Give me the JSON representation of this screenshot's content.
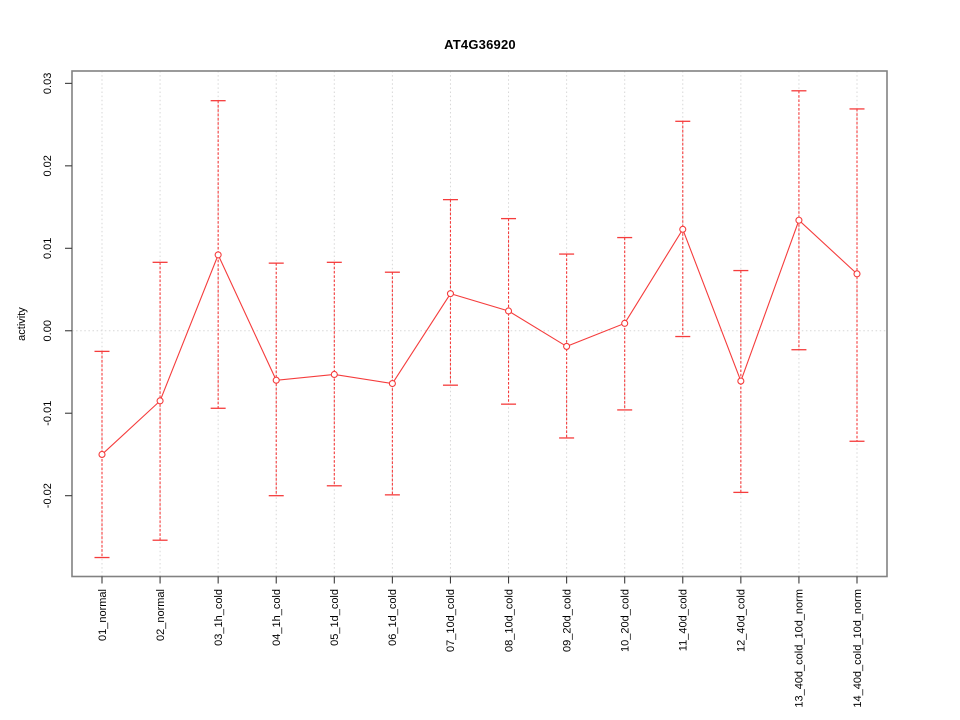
{
  "page": {
    "background": "#ffffff"
  },
  "chart_data": {
    "type": "line",
    "title": "AT4G36920",
    "ylabel": "activity",
    "xlabel": "",
    "legend": "none",
    "marker": "open-circle",
    "error_bars": true,
    "categories": [
      "01_normal",
      "02_normal",
      "03_1h_cold",
      "04_1h_cold",
      "05_1d_cold",
      "06_1d_cold",
      "07_10d_cold",
      "08_10d_cold",
      "09_20d_cold",
      "10_20d_cold",
      "11_40d_cold",
      "12_40d_cold",
      "13_40d_cold_10d_norm",
      "14_40d_cold_10d_norm"
    ],
    "series": [
      {
        "name": "activity",
        "color": "#f53c3c",
        "values": [
          -0.015,
          -0.0085,
          0.0092,
          -0.006,
          -0.0053,
          -0.0064,
          0.0045,
          0.0024,
          -0.0019,
          0.0009,
          0.0123,
          -0.0061,
          0.0134,
          0.0069
        ],
        "upper": [
          -0.0025,
          0.0083,
          0.0279,
          0.0082,
          0.0083,
          0.0071,
          0.0159,
          0.0136,
          0.0093,
          0.0113,
          0.0254,
          0.0073,
          0.0291,
          0.0269
        ],
        "lower": [
          -0.0275,
          -0.0254,
          -0.0094,
          -0.02,
          -0.0188,
          -0.0199,
          -0.0066,
          -0.0089,
          -0.013,
          -0.0096,
          -0.0007,
          -0.0196,
          -0.0023,
          -0.0134
        ]
      }
    ],
    "yticks": [
      0.03,
      0.02,
      0.01,
      0,
      -0.01,
      -0.02
    ],
    "ytick_labels": [
      "0.03",
      "0.02",
      "0.01",
      "0.00",
      "-0.01",
      "-0.02"
    ],
    "ylim": [
      -0.0298,
      0.0315
    ],
    "grid": {
      "vertical_at_categories": true,
      "horizontal_at_zero": true,
      "style": "dotted",
      "color": "#d7d7d7"
    },
    "colors": {
      "series": "#f53c3c",
      "grid": "#d7d7d7",
      "box": "#828282",
      "tick": "#3c3c3c",
      "text": "#000000"
    }
  }
}
